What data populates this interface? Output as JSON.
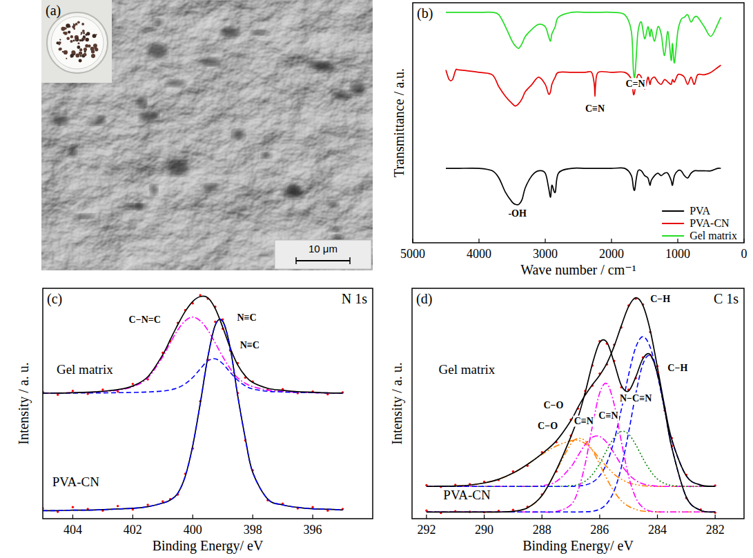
{
  "image": {
    "label": "(a)",
    "scale_bar": "10 μm"
  },
  "chart_data": [
    {
      "type": "line",
      "panel_label": "(b)",
      "xlabel": "Wave number / cm⁻¹",
      "ylabel": "Transmittance / a.u.",
      "xlim": [
        5000,
        0
      ],
      "xticks": [
        5000,
        4000,
        3000,
        2000,
        1000,
        0
      ],
      "ylim": [
        0,
        10
      ],
      "tick_labels": "x",
      "legend": "lower right",
      "x": [
        4500,
        4450,
        4400,
        4350,
        4300,
        4000,
        3800,
        3700,
        3600,
        3500,
        3450,
        3400,
        3350,
        3300,
        3200,
        3100,
        3000,
        2950,
        2920,
        2900,
        2850,
        2800,
        2600,
        2400,
        2300,
        2260,
        2250,
        2240,
        2200,
        2000,
        1800,
        1700,
        1670,
        1650,
        1630,
        1600,
        1550,
        1500,
        1450,
        1420,
        1400,
        1350,
        1300,
        1250,
        1200,
        1150,
        1100,
        1080,
        1050,
        1000,
        950,
        900,
        850,
        800,
        750,
        700,
        600,
        500,
        400,
        350
      ],
      "series": [
        {
          "name": "PVA",
          "color": "#000000",
          "values": [
            3.1,
            3.1,
            3.1,
            3.1,
            3.1,
            3.1,
            3.0,
            2.7,
            2.1,
            1.7,
            1.6,
            1.6,
            1.8,
            2.3,
            2.8,
            3.0,
            2.9,
            2.3,
            1.9,
            2.4,
            2.1,
            2.9,
            3.1,
            3.1,
            3.1,
            3.1,
            3.1,
            3.1,
            3.1,
            3.1,
            3.1,
            2.8,
            2.3,
            2.2,
            2.6,
            3.0,
            3.0,
            2.8,
            2.7,
            2.4,
            2.6,
            2.8,
            2.9,
            2.8,
            2.9,
            2.9,
            2.6,
            2.4,
            2.8,
            3.0,
            3.0,
            2.8,
            2.7,
            2.9,
            3.0,
            3.0,
            3.0,
            3.0,
            3.1,
            3.1
          ]
        },
        {
          "name": "PVA-CN",
          "color": "#e60000",
          "values": [
            7.2,
            6.8,
            6.8,
            7.2,
            7.2,
            7.1,
            7.0,
            6.5,
            6.1,
            5.8,
            5.7,
            5.8,
            6.0,
            6.3,
            6.6,
            6.9,
            6.6,
            6.2,
            6.3,
            6.6,
            6.9,
            7.1,
            7.1,
            7.1,
            7.1,
            6.6,
            6.1,
            6.6,
            7.1,
            7.1,
            7.1,
            6.8,
            6.2,
            6.3,
            6.7,
            7.0,
            6.9,
            6.4,
            6.9,
            6.6,
            6.8,
            6.9,
            6.7,
            6.6,
            6.8,
            6.7,
            6.6,
            6.8,
            6.7,
            7.0,
            7.0,
            6.9,
            6.6,
            6.9,
            6.6,
            7.0,
            7.0,
            7.1,
            7.3,
            7.4
          ]
        },
        {
          "name": "Gel matrix",
          "color": "#22dd22",
          "values": [
            9.6,
            9.6,
            9.6,
            9.6,
            9.6,
            9.6,
            9.6,
            9.5,
            9.0,
            8.4,
            8.2,
            8.1,
            8.3,
            8.6,
            8.9,
            9.1,
            9.0,
            8.6,
            8.4,
            8.7,
            9.0,
            9.4,
            9.6,
            9.6,
            9.6,
            9.6,
            9.6,
            9.6,
            9.6,
            9.6,
            9.5,
            8.8,
            7.2,
            6.9,
            7.6,
            8.8,
            9.2,
            8.5,
            9.0,
            8.6,
            8.9,
            8.4,
            9.0,
            8.7,
            7.8,
            8.8,
            7.6,
            8.3,
            7.5,
            8.8,
            9.3,
            9.4,
            9.5,
            9.2,
            9.4,
            9.4,
            9.0,
            8.6,
            9.1,
            9.4
          ]
        }
      ],
      "annotations": [
        {
          "text": "-OH",
          "x": 3420,
          "y": 1.1
        },
        {
          "text": "C≡N",
          "x": 2250,
          "y": 5.45
        },
        {
          "text": "C=N",
          "x": 1640,
          "y": 6.5
        }
      ]
    },
    {
      "type": "line",
      "title": "N 1s",
      "panel_label": "(c)",
      "xlabel": "Binding Energy/ eV",
      "ylabel": "Intensity / a. u.",
      "xlim": [
        405,
        394
      ],
      "xticks": [
        404,
        402,
        400,
        398,
        396
      ],
      "ylim": [
        0,
        10
      ],
      "tick_labels": "x",
      "x": [
        405,
        404.5,
        404,
        403.5,
        403,
        402.5,
        402,
        401.5,
        401,
        400.75,
        400.5,
        400.25,
        400,
        399.75,
        399.5,
        399.25,
        399,
        398.75,
        398.5,
        398.25,
        398,
        397.5,
        397,
        396.5,
        396,
        395.5,
        395
      ],
      "series": [
        {
          "type": "scatter",
          "marker": "dot",
          "color": "#ff0000",
          "values": [
            5.5,
            5.38,
            5.55,
            5.42,
            5.6,
            5.52,
            5.85,
            6.05,
            7.2,
            7.7,
            8.5,
            9.05,
            9.35,
            9.7,
            9.55,
            9.2,
            8.25,
            7.35,
            6.75,
            6.12,
            5.95,
            5.6,
            5.62,
            5.45,
            5.52,
            5.4,
            5.48
          ]
        },
        {
          "type": "line",
          "line_style": "dash-dot",
          "color": "#ff00ff",
          "values": [
            5.45,
            5.45,
            5.47,
            5.48,
            5.52,
            5.58,
            5.73,
            6.11,
            7.03,
            7.63,
            8.19,
            8.59,
            8.75,
            8.59,
            8.19,
            7.63,
            7.03,
            6.51,
            6.11,
            5.88,
            5.73,
            5.58,
            5.52,
            5.48,
            5.47,
            5.45,
            5.45
          ]
        },
        {
          "type": "line",
          "line_style": "dashed",
          "color": "#0000ff",
          "values": [
            5.45,
            5.45,
            5.45,
            5.46,
            5.46,
            5.47,
            5.48,
            5.5,
            5.54,
            5.59,
            5.68,
            5.86,
            6.13,
            6.5,
            6.85,
            6.94,
            6.73,
            6.35,
            6.01,
            5.77,
            5.63,
            5.53,
            5.5,
            5.48,
            5.47,
            5.46,
            5.45
          ]
        },
        {
          "type": "line",
          "line_style": "solid",
          "color": "#000000",
          "values": [
            5.45,
            5.45,
            5.47,
            5.49,
            5.53,
            5.6,
            5.76,
            6.16,
            7.12,
            7.77,
            8.42,
            9.0,
            9.43,
            9.64,
            9.59,
            9.12,
            8.31,
            7.41,
            6.67,
            6.2,
            5.91,
            5.66,
            5.57,
            5.51,
            5.49,
            5.46,
            5.45
          ]
        },
        {
          "type": "scatter",
          "marker": "dot",
          "color": "#ff0000",
          "values": [
            0.45,
            0.3,
            0.5,
            0.42,
            0.35,
            0.55,
            0.4,
            0.6,
            0.75,
            0.85,
            1.05,
            1.95,
            3.05,
            5.1,
            6.9,
            8.55,
            8.65,
            7.3,
            5.45,
            3.4,
            2.1,
            0.8,
            0.65,
            0.45,
            0.5,
            0.35,
            0.42
          ]
        },
        {
          "type": "line",
          "line_style": "solid",
          "color": "#000000",
          "values": [
            0.35,
            0.35,
            0.37,
            0.37,
            0.39,
            0.42,
            0.45,
            0.52,
            0.68,
            0.81,
            1.1,
            1.84,
            3.17,
            5.0,
            6.99,
            8.4,
            8.57,
            7.41,
            5.33,
            3.5,
            2.01,
            0.85,
            0.6,
            0.49,
            0.43,
            0.41,
            0.38
          ]
        },
        {
          "type": "line",
          "line_style": "dashed",
          "color": "#0000ff",
          "values": [
            0.35,
            0.35,
            0.37,
            0.37,
            0.39,
            0.42,
            0.45,
            0.52,
            0.68,
            0.81,
            1.1,
            1.84,
            3.17,
            5.0,
            6.99,
            8.4,
            8.57,
            7.41,
            5.33,
            3.5,
            2.01,
            0.85,
            0.6,
            0.49,
            0.43,
            0.41,
            0.38
          ]
        }
      ],
      "sample_labels": [
        {
          "text": "Gel matrix",
          "x": 403.6,
          "y": 6.3
        },
        {
          "text": "PVA-CN",
          "x": 403.9,
          "y": 1.4
        }
      ],
      "annotations": [
        {
          "text": "C−N=C",
          "x": 401.6,
          "y": 8.5
        },
        {
          "text": "N≡C",
          "x": 398.2,
          "y": 8.6
        },
        {
          "text": "N≡C",
          "x": 398.1,
          "y": 7.4
        }
      ]
    },
    {
      "type": "line",
      "title": "C 1s",
      "panel_label": "(d)",
      "xlabel": "Binding Energy/ eV",
      "ylabel": "Intensity / a. u.",
      "xlim": [
        292.5,
        281
      ],
      "xticks": [
        292,
        290,
        288,
        286,
        284,
        282
      ],
      "ylim": [
        0,
        10
      ],
      "tick_labels": "x",
      "x": [
        292,
        291.5,
        291,
        290.5,
        290,
        289.5,
        289,
        288.5,
        288,
        287.5,
        287,
        286.75,
        286.5,
        286.25,
        286,
        285.75,
        285.5,
        285.25,
        285,
        284.75,
        284.5,
        284.25,
        284,
        283.75,
        283.5,
        283,
        282.5,
        282
      ],
      "series": [
        {
          "type": "scatter",
          "marker": "dot",
          "color": "#ff0000",
          "values": [
            1.45,
            1.38,
            1.47,
            1.5,
            1.6,
            1.68,
            2.05,
            2.3,
            2.88,
            3.32,
            4.3,
            4.78,
            5.42,
            5.78,
            6.3,
            6.7,
            7.55,
            8.3,
            9.25,
            9.55,
            9.3,
            8.1,
            6.62,
            4.8,
            3.5,
            1.9,
            1.42,
            1.44
          ]
        },
        {
          "type": "line",
          "line_style": "dash-dot-dot",
          "color": "#ff8000",
          "values": [
            1.4,
            1.41,
            1.42,
            1.46,
            1.55,
            1.71,
            1.98,
            2.36,
            2.79,
            3.16,
            3.38,
            3.4,
            3.26,
            2.98,
            2.61,
            2.25,
            1.93,
            1.71,
            1.56,
            1.48,
            1.43,
            1.41,
            1.4,
            1.4,
            1.4,
            1.4,
            1.4,
            1.4
          ]
        },
        {
          "type": "line",
          "line_style": "dash-dot",
          "color": "#ff00ff",
          "values": [
            1.4,
            1.4,
            1.4,
            1.4,
            1.4,
            1.4,
            1.4,
            1.4,
            1.43,
            1.62,
            2.24,
            2.74,
            3.22,
            3.54,
            3.57,
            3.3,
            2.84,
            2.34,
            1.93,
            1.66,
            1.51,
            1.44,
            1.41,
            1.4,
            1.4,
            1.4,
            1.4,
            1.4
          ]
        },
        {
          "type": "line",
          "line_style": "dotted",
          "color": "#008000",
          "values": [
            1.4,
            1.4,
            1.4,
            1.4,
            1.4,
            1.4,
            1.4,
            1.4,
            1.4,
            1.4,
            1.43,
            1.48,
            1.63,
            1.92,
            2.39,
            2.98,
            3.52,
            3.79,
            3.67,
            3.21,
            2.61,
            2.09,
            1.72,
            1.53,
            1.44,
            1.4,
            1.4,
            1.4
          ]
        },
        {
          "type": "line",
          "line_style": "dashed",
          "color": "#0000ff",
          "values": [
            1.4,
            1.4,
            1.4,
            1.4,
            1.4,
            1.4,
            1.4,
            1.4,
            1.4,
            1.4,
            1.4,
            1.42,
            1.46,
            1.58,
            1.86,
            2.42,
            3.39,
            4.74,
            6.24,
            7.44,
            7.9,
            7.44,
            6.24,
            4.74,
            3.39,
            1.86,
            1.46,
            1.4
          ]
        },
        {
          "type": "line",
          "line_style": "solid",
          "color": "#000000",
          "values": [
            1.4,
            1.41,
            1.42,
            1.46,
            1.55,
            1.71,
            1.98,
            2.36,
            2.82,
            3.38,
            4.25,
            4.84,
            5.37,
            5.82,
            6.23,
            6.75,
            7.48,
            8.38,
            9.2,
            9.59,
            9.25,
            8.18,
            6.57,
            4.87,
            3.43,
            1.86,
            1.46,
            1.4
          ]
        },
        {
          "type": "scatter",
          "marker": "dot",
          "color": "#ff0000",
          "values": [
            0.35,
            0.25,
            0.32,
            0.3,
            0.28,
            0.34,
            0.38,
            0.52,
            1.05,
            2.05,
            3.6,
            4.35,
            5.55,
            6.65,
            7.7,
            7.6,
            6.85,
            5.7,
            5.6,
            6.1,
            7.0,
            7.1,
            6.35,
            4.7,
            3.15,
            0.9,
            0.4,
            0.26
          ]
        },
        {
          "type": "line",
          "line_style": "dash-dot-dot",
          "color": "#ff8000",
          "values": [
            0.29,
            0.29,
            0.29,
            0.29,
            0.29,
            0.29,
            0.32,
            0.47,
            1.0,
            2.1,
            3.24,
            3.48,
            3.38,
            2.96,
            2.36,
            1.72,
            1.18,
            0.78,
            0.54,
            0.4,
            0.33,
            0.31,
            0.29,
            0.29,
            0.29,
            0.29,
            0.29,
            0.29
          ]
        },
        {
          "type": "line",
          "line_style": "dash-dot",
          "color": "#ff00ff",
          "values": [
            0.29,
            0.29,
            0.29,
            0.29,
            0.29,
            0.29,
            0.29,
            0.29,
            0.29,
            0.31,
            0.6,
            1.21,
            2.39,
            4.03,
            5.46,
            5.86,
            4.97,
            3.35,
            1.85,
            0.91,
            0.48,
            0.33,
            0.3,
            0.29,
            0.29,
            0.29,
            0.29,
            0.29
          ]
        },
        {
          "type": "line",
          "line_style": "dashed",
          "color": "#0000ff",
          "values": [
            0.29,
            0.29,
            0.29,
            0.29,
            0.29,
            0.29,
            0.29,
            0.29,
            0.29,
            0.29,
            0.29,
            0.29,
            0.3,
            0.32,
            0.41,
            0.66,
            1.21,
            2.23,
            3.73,
            5.42,
            6.72,
            7.07,
            6.29,
            4.76,
            3.08,
            0.94,
            0.36,
            0.29
          ]
        },
        {
          "type": "line",
          "line_style": "solid",
          "color": "#000000",
          "values": [
            0.29,
            0.29,
            0.29,
            0.29,
            0.29,
            0.29,
            0.32,
            0.47,
            1.0,
            2.12,
            3.55,
            4.4,
            5.49,
            6.73,
            7.65,
            7.66,
            6.78,
            5.78,
            5.54,
            6.15,
            6.95,
            7.13,
            6.3,
            4.76,
            3.08,
            0.94,
            0.36,
            0.29
          ]
        }
      ],
      "sample_labels": [
        {
          "text": "Gel matrix",
          "x": 290.6,
          "y": 6.3
        },
        {
          "text": "PVA-CN",
          "x": 290.6,
          "y": 0.85
        }
      ],
      "annotations": [
        {
          "text": "C−O",
          "x": 287.6,
          "y": 4.8
        },
        {
          "text": "C≡N",
          "x": 286.55,
          "y": 4.1
        },
        {
          "text": "N−C≡N",
          "x": 284.75,
          "y": 5.1
        },
        {
          "text": "C−H",
          "x": 283.9,
          "y": 9.4
        },
        {
          "text": "C−O",
          "x": 287.8,
          "y": 3.9
        },
        {
          "text": "C≡N",
          "x": 285.7,
          "y": 4.35
        },
        {
          "text": "C−H",
          "x": 283.3,
          "y": 6.4
        }
      ]
    }
  ]
}
